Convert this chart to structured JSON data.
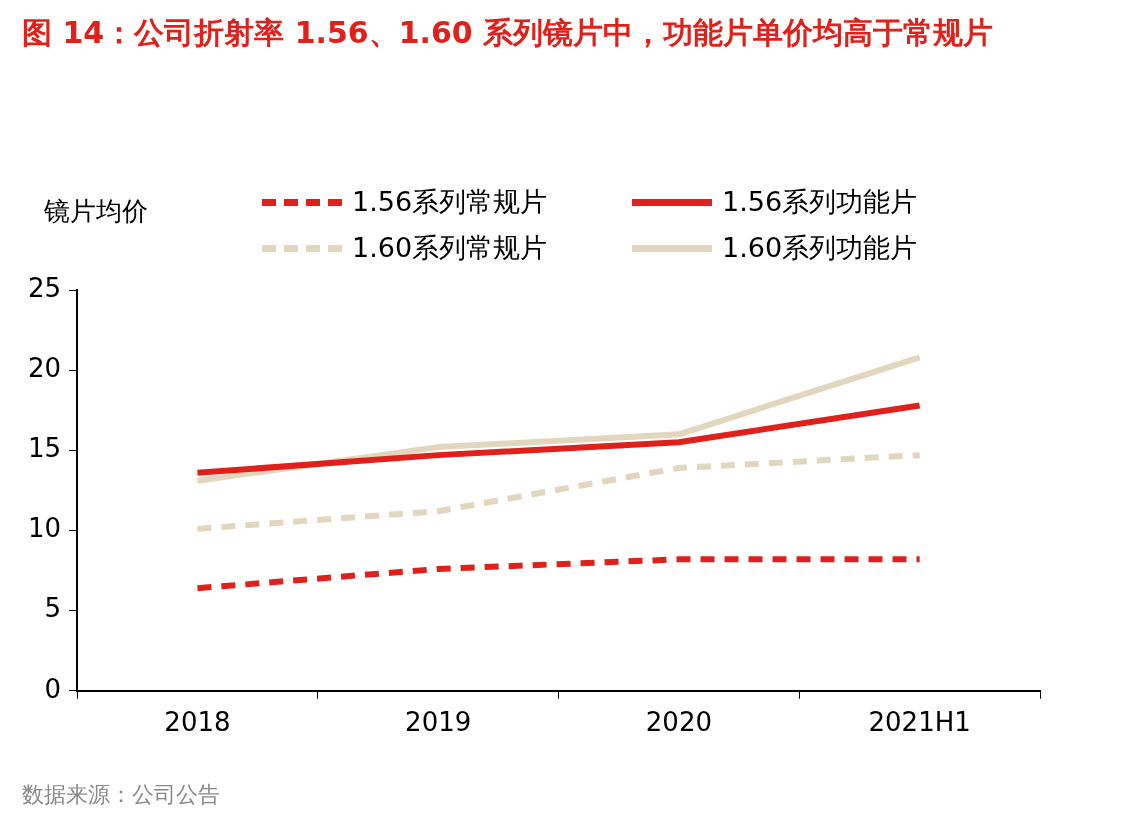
{
  "chart_data": {
    "type": "line",
    "title": "图 14：公司折射率 1.56、1.60 系列镜片中，功能片单价均高于常规片",
    "ylabel": "镜片均价",
    "categories": [
      "2018",
      "2019",
      "2020",
      "2021H1"
    ],
    "series": [
      {
        "name": "1.56系列常规片",
        "color": "#e0201b",
        "line_style": "dashed",
        "values": [
          6.4,
          7.6,
          8.2,
          8.2
        ]
      },
      {
        "name": "1.56系列功能片",
        "color": "#e0201b",
        "line_style": "solid",
        "values": [
          13.6,
          14.7,
          15.5,
          17.8
        ]
      },
      {
        "name": "1.60系列常规片",
        "color": "#e3d6bf",
        "line_style": "dashed",
        "values": [
          10.1,
          11.2,
          13.9,
          14.7
        ]
      },
      {
        "name": "1.60系列功能片",
        "color": "#e3d6bf",
        "line_style": "solid",
        "values": [
          13.1,
          15.2,
          16.0,
          20.8
        ]
      }
    ],
    "ylim": [
      0,
      25
    ],
    "yticks": [
      0,
      5,
      10,
      15,
      20,
      25
    ],
    "grid": false,
    "legend": "top",
    "marker": "none",
    "annotations": [
      "数据来源：公司公告"
    ]
  }
}
